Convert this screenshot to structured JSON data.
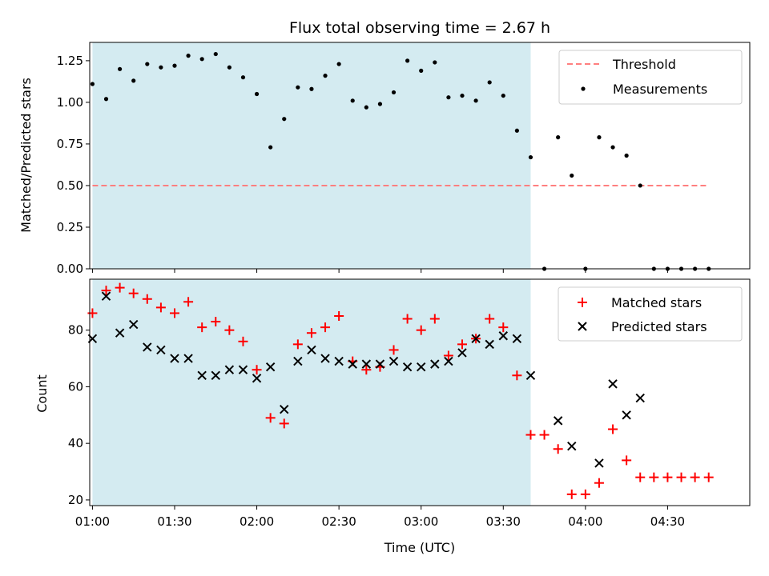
{
  "chart_data": [
    {
      "type": "scatter",
      "title": "Flux total observing time = 2.67 h",
      "xlabel": "",
      "ylabel": "Matched/Predicted stars",
      "xlim": [
        "00:59",
        "05:00"
      ],
      "ylim": [
        0,
        1.36
      ],
      "yticks": [
        0,
        0.25,
        0.5,
        0.75,
        1.0,
        1.25
      ],
      "ytick_labels": [
        "0.00",
        "0.25",
        "0.50",
        "0.75",
        "1.00",
        "1.25"
      ],
      "shaded_span": [
        "01:00",
        "03:40"
      ],
      "shade_color": "#d4ebf1",
      "legend_position": "upper right",
      "threshold": {
        "name": "Threshold",
        "y": 0.5,
        "x_range": [
          "01:00",
          "04:45"
        ],
        "color": "#ff7f7f"
      },
      "series": [
        {
          "name": "Measurements",
          "color": "#000000",
          "marker": "dot",
          "x": [
            "01:00",
            "01:05",
            "01:10",
            "01:15",
            "01:20",
            "01:25",
            "01:30",
            "01:35",
            "01:40",
            "01:45",
            "01:50",
            "01:55",
            "02:00",
            "02:05",
            "02:10",
            "02:15",
            "02:20",
            "02:25",
            "02:30",
            "02:35",
            "02:40",
            "02:45",
            "02:50",
            "02:55",
            "03:00",
            "03:05",
            "03:10",
            "03:15",
            "03:20",
            "03:25",
            "03:30",
            "03:35",
            "03:40",
            "03:45",
            "03:50",
            "03:55",
            "04:00",
            "04:05",
            "04:10",
            "04:15",
            "04:20",
            "04:25",
            "04:30",
            "04:35",
            "04:40",
            "04:45"
          ],
          "values": [
            1.11,
            1.02,
            1.2,
            1.13,
            1.23,
            1.21,
            1.22,
            1.28,
            1.26,
            1.29,
            1.21,
            1.15,
            1.05,
            0.73,
            0.9,
            1.09,
            1.08,
            1.16,
            1.23,
            1.01,
            0.97,
            0.99,
            1.06,
            1.25,
            1.19,
            1.24,
            1.03,
            1.04,
            1.01,
            1.12,
            1.04,
            0.83,
            0.67,
            0.0,
            0.79,
            0.56,
            0.0,
            0.79,
            0.73,
            0.68,
            0.5,
            0.0,
            0.0,
            0.0,
            0.0,
            0.0
          ]
        }
      ]
    },
    {
      "type": "scatter",
      "title": "",
      "xlabel": "Time (UTC)",
      "ylabel": "Count",
      "xlim": [
        "00:59",
        "05:00"
      ],
      "ylim": [
        18,
        98
      ],
      "yticks": [
        20,
        40,
        60,
        80
      ],
      "ytick_labels": [
        "20",
        "40",
        "60",
        "80"
      ],
      "xticks": [
        "01:00",
        "01:30",
        "02:00",
        "02:30",
        "03:00",
        "03:30",
        "04:00",
        "04:30"
      ],
      "shaded_span": [
        "01:00",
        "03:40"
      ],
      "shade_color": "#d4ebf1",
      "legend_position": "upper right",
      "series": [
        {
          "name": "Matched stars",
          "color": "#ff0000",
          "marker": "plus",
          "x": [
            "01:00",
            "01:05",
            "01:10",
            "01:15",
            "01:20",
            "01:25",
            "01:30",
            "01:35",
            "01:40",
            "01:45",
            "01:50",
            "01:55",
            "02:00",
            "02:05",
            "02:10",
            "02:15",
            "02:20",
            "02:25",
            "02:30",
            "02:35",
            "02:40",
            "02:45",
            "02:50",
            "02:55",
            "03:00",
            "03:05",
            "03:10",
            "03:15",
            "03:20",
            "03:25",
            "03:30",
            "03:35",
            "03:40",
            "03:45",
            "03:50",
            "03:55",
            "04:00",
            "04:05",
            "04:10",
            "04:15",
            "04:20",
            "04:25",
            "04:30",
            "04:35",
            "04:40",
            "04:45"
          ],
          "values": [
            86,
            94,
            95,
            93,
            91,
            88,
            86,
            90,
            81,
            83,
            80,
            76,
            66,
            49,
            47,
            75,
            79,
            81,
            85,
            69,
            66,
            67,
            73,
            84,
            80,
            84,
            71,
            75,
            77,
            84,
            81,
            64,
            43,
            43,
            38,
            22,
            22,
            26,
            45,
            34,
            28,
            28,
            28,
            28,
            28,
            28
          ]
        },
        {
          "name": "Predicted stars",
          "color": "#000000",
          "marker": "x",
          "x": [
            "01:00",
            "01:05",
            "01:10",
            "01:15",
            "01:20",
            "01:25",
            "01:30",
            "01:35",
            "01:40",
            "01:45",
            "01:50",
            "01:55",
            "02:00",
            "02:05",
            "02:10",
            "02:15",
            "02:20",
            "02:25",
            "02:30",
            "02:35",
            "02:40",
            "02:45",
            "02:50",
            "02:55",
            "03:00",
            "03:05",
            "03:10",
            "03:15",
            "03:20",
            "03:25",
            "03:30",
            "03:35",
            "03:40",
            "03:50",
            "03:55",
            "04:05",
            "04:10",
            "04:15",
            "04:20"
          ],
          "values": [
            77,
            92,
            79,
            82,
            74,
            73,
            70,
            70,
            64,
            64,
            66,
            66,
            63,
            67,
            52,
            69,
            73,
            70,
            69,
            68,
            68,
            68,
            69,
            67,
            67,
            68,
            69,
            72,
            77,
            75,
            78,
            77,
            64,
            48,
            39,
            33,
            61,
            50,
            56
          ]
        }
      ]
    }
  ]
}
